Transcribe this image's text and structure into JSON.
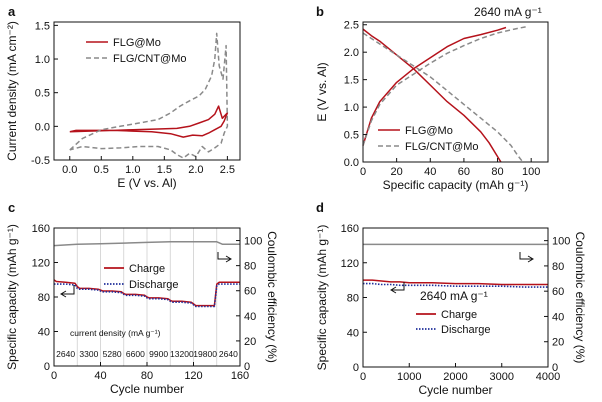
{
  "colors": {
    "mo": "#b5121b",
    "cnt": "#8a8a8a",
    "discharge": "#1f2f9a",
    "ce": "#8a8a8a"
  },
  "chart_data": [
    {
      "panel": "a",
      "type": "line",
      "xlabel": "E (V vs. Al)",
      "ylabel": "Current density (mA cm⁻²)",
      "xlim": [
        -0.25,
        2.7
      ],
      "ylim": [
        -0.5,
        1.55
      ],
      "xticks": [
        "0.0",
        "0.5",
        "1.0",
        "1.5",
        "2.0",
        "2.5"
      ],
      "xtickvals": [
        0,
        0.5,
        1,
        1.5,
        2,
        2.5
      ],
      "yticks": [
        "-0.5",
        "0.0",
        "0.5",
        "1.0",
        "1.5"
      ],
      "ytickvals": [
        -0.5,
        0,
        0.5,
        1,
        1.5
      ],
      "legend": [
        "FLG@Mo",
        "FLG/CNT@Mo"
      ],
      "series": [
        {
          "name": "FLG@Mo",
          "style": "solid",
          "color": "mo",
          "x": [
            0.0,
            0.3,
            0.7,
            1.0,
            1.4,
            1.7,
            1.9,
            2.05,
            2.2,
            2.3,
            2.36,
            2.42,
            2.5,
            2.45,
            2.4,
            2.3,
            2.2,
            2.1,
            1.95,
            1.8,
            1.6,
            1.3,
            1.0,
            0.7,
            0.4,
            0.1,
            0.0
          ],
          "y": [
            -0.08,
            -0.07,
            -0.06,
            -0.05,
            -0.04,
            -0.03,
            0.0,
            0.05,
            0.1,
            0.18,
            0.3,
            0.12,
            0.2,
            0.08,
            0.0,
            -0.05,
            -0.1,
            -0.14,
            -0.13,
            -0.16,
            -0.11,
            -0.08,
            -0.07,
            -0.06,
            -0.06,
            -0.06,
            -0.08
          ]
        },
        {
          "name": "FLG/CNT@Mo",
          "style": "dashed",
          "color": "cnt",
          "x": [
            0.0,
            0.2,
            0.5,
            0.8,
            1.1,
            1.4,
            1.6,
            1.75,
            1.9,
            2.05,
            2.15,
            2.25,
            2.3,
            2.33,
            2.37,
            2.43,
            2.48,
            2.5,
            2.45,
            2.4,
            2.3,
            2.2,
            2.1,
            2.0,
            1.9,
            1.8,
            1.7,
            1.6,
            1.4,
            1.1,
            0.8,
            0.5,
            0.2,
            0.0
          ],
          "y": [
            -0.35,
            -0.18,
            -0.05,
            0.0,
            0.05,
            0.1,
            0.2,
            0.3,
            0.38,
            0.45,
            0.55,
            0.75,
            1.0,
            1.38,
            0.9,
            0.7,
            1.2,
            0.0,
            -0.1,
            -0.25,
            -0.32,
            -0.38,
            -0.3,
            -0.45,
            -0.4,
            -0.47,
            -0.42,
            -0.35,
            -0.3,
            -0.3,
            -0.32,
            -0.33,
            -0.3,
            -0.35
          ]
        }
      ]
    },
    {
      "panel": "b",
      "type": "line",
      "annotation": "2640 mA g⁻¹",
      "xlabel": "Specific capacity (mAh g⁻¹)",
      "ylabel": "E (V vs. Al)",
      "xlim": [
        0,
        110
      ],
      "ylim": [
        0,
        2.55
      ],
      "xticks": [
        "0",
        "20",
        "40",
        "60",
        "80",
        "100"
      ],
      "xtickvals": [
        0,
        20,
        40,
        60,
        80,
        100
      ],
      "yticks": [
        "0.0",
        "0.5",
        "1.0",
        "1.5",
        "2.0",
        "2.5"
      ],
      "ytickvals": [
        0,
        0.5,
        1,
        1.5,
        2,
        2.5
      ],
      "legend": [
        "FLG@Mo",
        "FLG/CNT@Mo"
      ],
      "series": [
        {
          "name": "FLG@Mo charge",
          "style": "solid",
          "color": "mo",
          "x": [
            0,
            5,
            10,
            20,
            30,
            40,
            50,
            60,
            70,
            80,
            85
          ],
          "y": [
            0.3,
            0.8,
            1.1,
            1.45,
            1.7,
            1.9,
            2.1,
            2.25,
            2.32,
            2.4,
            2.45
          ]
        },
        {
          "name": "FLG@Mo discharge",
          "style": "solid",
          "color": "mo",
          "x": [
            0,
            5,
            10,
            20,
            30,
            40,
            50,
            60,
            70,
            75,
            80,
            82
          ],
          "y": [
            2.42,
            2.3,
            2.2,
            1.95,
            1.7,
            1.4,
            1.1,
            0.85,
            0.55,
            0.35,
            0.1,
            0.0
          ]
        },
        {
          "name": "FLG/CNT@Mo charge",
          "style": "dashed",
          "color": "cnt",
          "x": [
            0,
            5,
            10,
            20,
            30,
            40,
            50,
            60,
            70,
            80,
            90,
            98
          ],
          "y": [
            0.3,
            0.75,
            1.05,
            1.4,
            1.6,
            1.8,
            1.98,
            2.12,
            2.25,
            2.35,
            2.42,
            2.47
          ]
        },
        {
          "name": "FLG/CNT@Mo discharge",
          "style": "dashed",
          "color": "cnt",
          "x": [
            0,
            5,
            10,
            20,
            30,
            40,
            50,
            60,
            70,
            80,
            88,
            92,
            95
          ],
          "y": [
            2.35,
            2.25,
            2.15,
            1.95,
            1.75,
            1.55,
            1.3,
            1.05,
            0.8,
            0.55,
            0.3,
            0.12,
            0.0
          ]
        }
      ]
    },
    {
      "panel": "c",
      "type": "line",
      "xlabel": "Cycle number",
      "ylabel": "Specific capacity (mAh g⁻¹)",
      "y2label": "Coulombic efficiency (%)",
      "xlim": [
        0,
        160
      ],
      "ylim": [
        0,
        160
      ],
      "y2lim": [
        0,
        110
      ],
      "xticks": [
        "0",
        "40",
        "80",
        "120",
        "160"
      ],
      "xtickvals": [
        0,
        40,
        80,
        120,
        160
      ],
      "yticks": [
        "0",
        "40",
        "80",
        "120",
        "160"
      ],
      "ytickvals": [
        0,
        40,
        80,
        120,
        160
      ],
      "y2ticks": [
        "0",
        "20",
        "40",
        "60",
        "80",
        "100"
      ],
      "y2tickvals": [
        0,
        20,
        40,
        60,
        80,
        100
      ],
      "legend": [
        "Charge",
        "Discharge"
      ],
      "density_label": "current density (mA g⁻¹)",
      "density_steps": [
        "2640",
        "3300",
        "5280",
        "6600",
        "9900",
        "13200",
        "19800",
        "2640"
      ],
      "series": [
        {
          "name": "Charge",
          "color": "mo",
          "style": "solid",
          "x": [
            0,
            2,
            10,
            18,
            20,
            22,
            30,
            38,
            40,
            42,
            50,
            58,
            60,
            62,
            70,
            78,
            80,
            82,
            90,
            98,
            100,
            102,
            110,
            118,
            120,
            122,
            130,
            138,
            140,
            142,
            150,
            160
          ],
          "y": [
            100,
            98,
            97,
            96,
            92,
            90,
            90,
            89,
            88,
            87,
            87,
            86,
            84,
            83,
            83,
            82,
            80,
            79,
            79,
            78,
            76,
            75,
            75,
            74,
            72,
            70,
            70,
            70,
            95,
            97,
            97,
            97
          ]
        },
        {
          "name": "Discharge",
          "color": "discharge",
          "style": "dotted",
          "x": [
            0,
            2,
            10,
            18,
            20,
            22,
            30,
            38,
            40,
            42,
            50,
            58,
            60,
            62,
            70,
            78,
            80,
            82,
            90,
            98,
            100,
            102,
            110,
            118,
            120,
            122,
            130,
            138,
            140,
            142,
            150,
            160
          ],
          "y": [
            95,
            95,
            95,
            94,
            90,
            89,
            89,
            88,
            87,
            86,
            86,
            85,
            83,
            82,
            82,
            81,
            79,
            78,
            78,
            77,
            75,
            74,
            74,
            73,
            71,
            69,
            69,
            69,
            93,
            95,
            95,
            95
          ]
        },
        {
          "name": "Coulombic efficiency",
          "color": "ce",
          "style": "solid",
          "axis": "y2",
          "x": [
            0,
            20,
            40,
            60,
            80,
            100,
            120,
            140,
            145,
            160
          ],
          "y": [
            96,
            97,
            97.5,
            98,
            98.5,
            99,
            99,
            99,
            97,
            97
          ]
        }
      ]
    },
    {
      "panel": "d",
      "type": "line",
      "annotation": "2640 mA g⁻¹",
      "xlabel": "Cycle number",
      "ylabel": "Specific capacity (mAh g⁻¹)",
      "y2label": "Coulombic efficiency (%)",
      "xlim": [
        0,
        4000
      ],
      "ylim": [
        0,
        160
      ],
      "y2lim": [
        0,
        110
      ],
      "xticks": [
        "0",
        "1000",
        "2000",
        "3000",
        "4000"
      ],
      "xtickvals": [
        0,
        1000,
        2000,
        3000,
        4000
      ],
      "yticks": [
        "0",
        "40",
        "80",
        "120",
        "160"
      ],
      "ytickvals": [
        0,
        40,
        80,
        120,
        160
      ],
      "y2ticks": [
        "0",
        "20",
        "40",
        "60",
        "80",
        "100"
      ],
      "y2tickvals": [
        0,
        20,
        40,
        60,
        80,
        100
      ],
      "legend": [
        "Charge",
        "Discharge"
      ],
      "series": [
        {
          "name": "Charge",
          "color": "mo",
          "style": "solid",
          "x": [
            0,
            200,
            400,
            600,
            800,
            1000,
            1500,
            2000,
            2500,
            3000,
            3500,
            4000
          ],
          "y": [
            100,
            100,
            99,
            98,
            98,
            97,
            97,
            96,
            96,
            95,
            95,
            95
          ]
        },
        {
          "name": "Discharge",
          "color": "discharge",
          "style": "dotted",
          "x": [
            0,
            200,
            400,
            600,
            800,
            1000,
            1500,
            2000,
            2500,
            3000,
            3500,
            4000
          ],
          "y": [
            96,
            96,
            95,
            95,
            94,
            94,
            94,
            93,
            93,
            93,
            92,
            92
          ]
        },
        {
          "name": "Coulombic efficiency",
          "color": "ce",
          "style": "solid",
          "axis": "y2",
          "x": [
            0,
            500,
            1000,
            1500,
            2000,
            2500,
            3000,
            3500,
            4000
          ],
          "y": [
            97,
            97,
            97,
            97,
            97,
            97,
            97,
            97,
            97
          ]
        }
      ]
    }
  ]
}
